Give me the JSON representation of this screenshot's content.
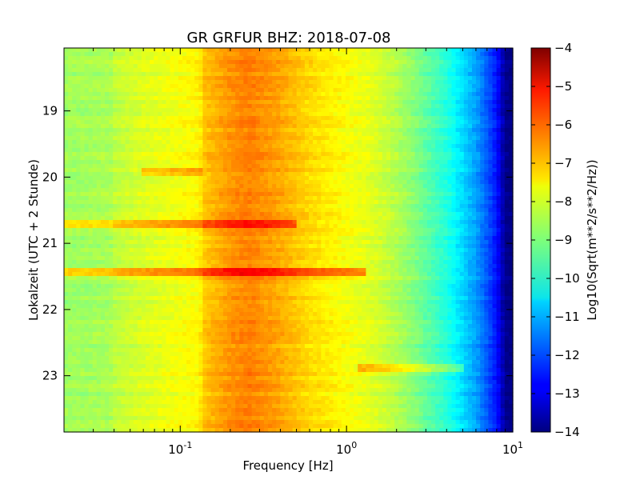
{
  "chart_data": {
    "type": "heatmap",
    "title": "GR GRFUR BHZ: 2018-07-08",
    "xlabel": "Frequency [Hz]",
    "ylabel": "Lokalzeit (UTC + 2 Stunde)",
    "xscale": "log",
    "xlim": [
      0.02,
      10
    ],
    "x_ticks": [
      {
        "value": 0.1,
        "base": "10",
        "exp": "-1"
      },
      {
        "value": 1,
        "base": "10",
        "exp": "0"
      },
      {
        "value": 10,
        "base": "10",
        "exp": "1"
      }
    ],
    "ylim": [
      18.05,
      23.85
    ],
    "y_inverted": true,
    "y_ticks": [
      19,
      20,
      21,
      22,
      23
    ],
    "colorbar": {
      "label": "Log10(Sqrt(m**2/s**2/Hz))",
      "range": [
        -14,
        -4
      ],
      "ticks": [
        -4,
        -5,
        -6,
        -7,
        -8,
        -9,
        -10,
        -11,
        -12,
        -13,
        -14
      ],
      "colormap": "jet"
    },
    "profile": {
      "frequency_hz": [
        0.02,
        0.038,
        0.04,
        0.06,
        0.13,
        0.14,
        0.2,
        0.26,
        0.4,
        0.6,
        1.0,
        1.5,
        2.0,
        2.5,
        3.0,
        4.0,
        5.0,
        6.0,
        7.0,
        8.0,
        8.5,
        9.0,
        10.0
      ],
      "level": [
        -8.7,
        -8.6,
        -8.4,
        -8.1,
        -7.7,
        -7.2,
        -6.7,
        -6.5,
        -6.9,
        -7.4,
        -7.8,
        -8.1,
        -8.5,
        -8.9,
        -9.3,
        -9.9,
        -10.6,
        -11.2,
        -11.9,
        -12.6,
        -13.2,
        -13.9,
        -14.0
      ]
    },
    "events": [
      {
        "time": 19.93,
        "f_min": 0.06,
        "f_max": 0.14,
        "delta": 0.8
      },
      {
        "time": 20.71,
        "f_min": 0.02,
        "f_max": 0.5,
        "delta": 1.2
      },
      {
        "time": 21.42,
        "f_min": 0.02,
        "f_max": 1.3,
        "delta": 1.4
      },
      {
        "time": 22.87,
        "f_min": 1.2,
        "f_max": 5.0,
        "delta": 1.0
      }
    ]
  }
}
